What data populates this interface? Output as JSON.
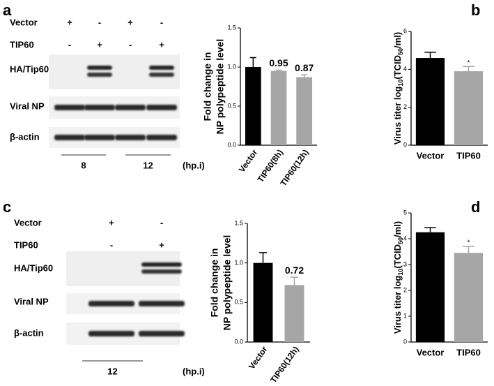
{
  "panel_labels": [
    "a",
    "b",
    "c",
    "d"
  ],
  "blots": [
    {
      "rows": [
        "Vector",
        "TIP60"
      ],
      "signs": [
        [
          "+",
          "-",
          "+",
          "-"
        ],
        [
          "-",
          "+",
          "-",
          "+"
        ]
      ],
      "bands": [
        "HA/Tip60",
        "Viral NP",
        "β-actin"
      ],
      "timepoints": [
        "8",
        "12"
      ],
      "unit": "(hp.i)"
    },
    {
      "rows": [
        "Vector",
        "TIP60"
      ],
      "signs": [
        [
          "+",
          "-"
        ],
        [
          "-",
          "+"
        ]
      ],
      "bands": [
        "HA/Tip60",
        "Viral NP",
        "β-actin"
      ],
      "timepoints": [
        "12"
      ],
      "unit": "(hp.i)"
    }
  ],
  "chart_data": [
    {
      "type": "bar",
      "ylabel": [
        "Fold change in",
        "NP polypeptide level"
      ],
      "categories": [
        "Vector",
        "TIP60(8h)",
        "TIP60(12h)"
      ],
      "values": [
        1.0,
        0.95,
        0.87
      ],
      "errors": [
        0.12,
        0.01,
        0.03
      ],
      "value_labels": [
        null,
        "0.95",
        "0.87"
      ],
      "colors": [
        "#000000",
        "#a6a6a6",
        "#a6a6a6"
      ],
      "ylim": [
        0,
        1.5
      ],
      "yticks": [
        {
          "value": 0,
          "label": "0.0"
        },
        {
          "value": 0.5,
          "label": "0.5"
        },
        {
          "value": 1,
          "label": "1.0"
        },
        {
          "value": 1.5,
          "label": "1.5"
        }
      ]
    },
    {
      "type": "bar",
      "ylabel": [
        "Virus titer log",
        "10",
        "(TCID",
        "50",
        "/ml)"
      ],
      "categories": [
        "Vector",
        "TIP60"
      ],
      "values": [
        4.6,
        3.9
      ],
      "errors": [
        0.3,
        0.25
      ],
      "annotations": [
        null,
        "*"
      ],
      "colors": [
        "#000000",
        "#a6a6a6"
      ],
      "ylim": [
        0,
        6
      ],
      "yticks": [
        0,
        2,
        4,
        6
      ]
    },
    {
      "type": "bar",
      "ylabel": [
        "Fold change in",
        "NP polypeptide level"
      ],
      "categories": [
        "Vector",
        "TIP60(12h)"
      ],
      "values": [
        1.0,
        0.72
      ],
      "errors": [
        0.13,
        0.1
      ],
      "value_labels": [
        null,
        "0.72"
      ],
      "colors": [
        "#000000",
        "#a6a6a6"
      ],
      "ylim": [
        0,
        1.5
      ],
      "yticks": [
        {
          "value": 0,
          "label": "0.0"
        },
        {
          "value": 0.5,
          "label": "0.5"
        },
        {
          "value": 1,
          "label": "1.0"
        },
        {
          "value": 1.5,
          "label": "1.5"
        }
      ]
    },
    {
      "type": "bar",
      "ylabel": [
        "Virus titer log",
        "10",
        "(TCID",
        "50",
        "/ml)"
      ],
      "categories": [
        "Vector",
        "TIP60"
      ],
      "values": [
        4.25,
        3.45
      ],
      "errors": [
        0.18,
        0.25
      ],
      "annotations": [
        null,
        "*"
      ],
      "colors": [
        "#000000",
        "#a6a6a6"
      ],
      "ylim": [
        0,
        5
      ],
      "yticks": [
        0,
        1,
        2,
        3,
        4,
        5
      ]
    }
  ]
}
